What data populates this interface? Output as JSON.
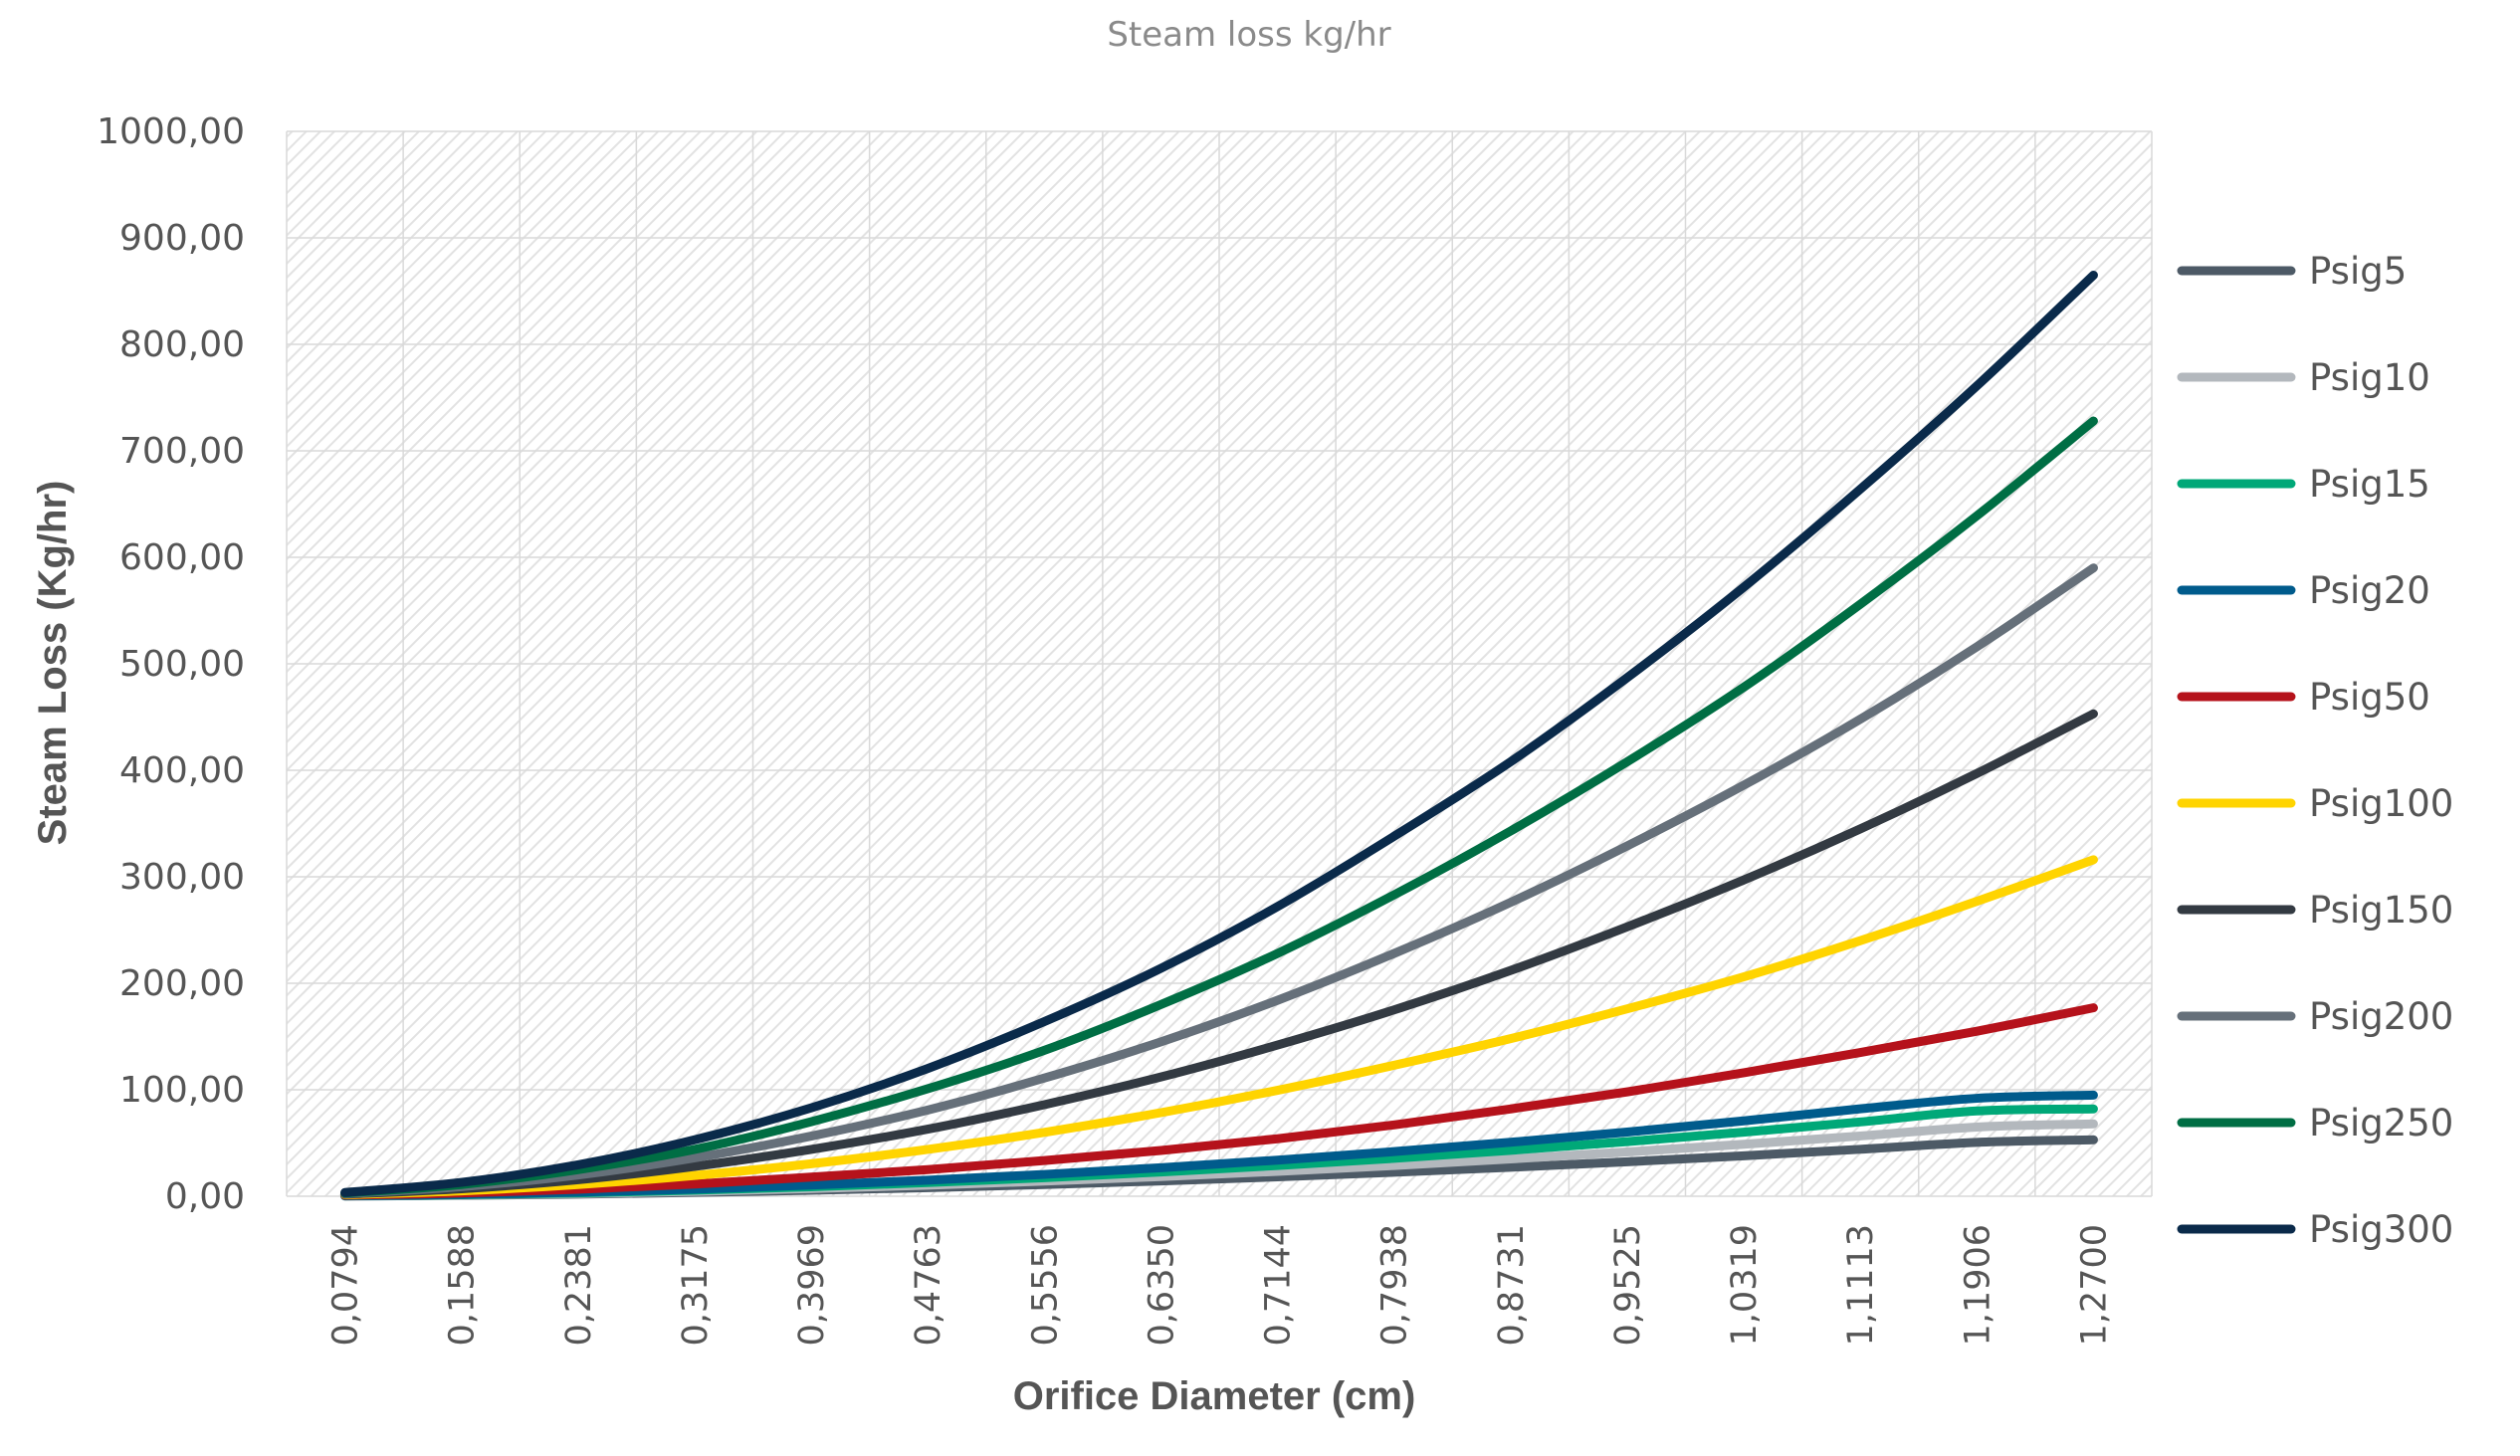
{
  "chart_data": {
    "type": "line",
    "title": "Steam loss kg/hr",
    "xlabel": "Orifice Diameter (cm)",
    "ylabel": "Steam Loss (Kg/hr)",
    "ylim": [
      0,
      1000
    ],
    "yticks": [
      "0,00",
      "100,00",
      "200,00",
      "300,00",
      "400,00",
      "500,00",
      "600,00",
      "700,00",
      "800,00",
      "900,00",
      "1000,00"
    ],
    "categories": [
      "0,0794",
      "0,1588",
      "0,2381",
      "0,3175",
      "0,3969",
      "0,4763",
      "0,5556",
      "0,6350",
      "0,7144",
      "0,7938",
      "0,8731",
      "0,9525",
      "1,0319",
      "1,1113",
      "1,1906",
      "1,2700"
    ],
    "grid": true,
    "legend_position": "right",
    "series": [
      {
        "name": "Psig5",
        "color": "#4d5a66",
        "values": [
          0.2,
          0.9,
          2.0,
          3.6,
          5.6,
          8.1,
          11.0,
          14.4,
          18.2,
          22.5,
          27.2,
          32.4,
          38.0,
          44.1,
          50.6,
          53.0
        ]
      },
      {
        "name": "Psig10",
        "color": "#b3b8bd",
        "values": [
          0.3,
          1.2,
          2.6,
          4.6,
          7.2,
          10.4,
          14.2,
          18.5,
          23.4,
          28.9,
          35.0,
          41.6,
          48.8,
          56.6,
          65.0,
          68.0
        ]
      },
      {
        "name": "Psig15",
        "color": "#00a878",
        "values": [
          0.4,
          1.4,
          3.2,
          5.7,
          8.9,
          12.8,
          17.4,
          22.8,
          28.8,
          35.6,
          43.1,
          51.3,
          60.2,
          69.8,
          80.1,
          82.0
        ]
      },
      {
        "name": "Psig20",
        "color": "#005b8c",
        "values": [
          0.5,
          1.7,
          3.8,
          6.7,
          10.5,
          15.1,
          20.5,
          26.8,
          33.9,
          41.9,
          50.7,
          60.3,
          70.8,
          82.1,
          92.0,
          95.0
        ]
      },
      {
        "name": "Psig50",
        "color": "#b5121b",
        "values": [
          1.0,
          3.0,
          6.5,
          11.5,
          18.0,
          25.0,
          33.5,
          43.0,
          54.0,
          67.0,
          82.0,
          98.0,
          116.0,
          135.0,
          155.0,
          177.0
        ]
      },
      {
        "name": "Psig100",
        "color": "#ffd400",
        "values": [
          1.5,
          5.0,
          11.0,
          19.5,
          30.5,
          44.0,
          60.0,
          78.5,
          99.5,
          123.0,
          148.0,
          176.0,
          206.0,
          240.0,
          277.0,
          316.0
        ]
      },
      {
        "name": "Psig150",
        "color": "#333a42",
        "values": [
          2.0,
          7.0,
          15.5,
          28.0,
          44.0,
          63.0,
          86.0,
          112.0,
          142.0,
          175.0,
          212.0,
          253.0,
          297.0,
          345.0,
          397.0,
          453.0
        ]
      },
      {
        "name": "Psig200",
        "color": "#66707a",
        "values": [
          2.5,
          9.0,
          20.0,
          36.0,
          56.5,
          81.0,
          111.0,
          145.0,
          184.0,
          228.0,
          276.0,
          329.0,
          386.0,
          448.0,
          516.0,
          590.0
        ]
      },
      {
        "name": "Psig250",
        "color": "#006e44",
        "values": [
          3.0,
          11.0,
          25.0,
          44.0,
          70.0,
          101.0,
          137.0,
          180.0,
          228.0,
          283.0,
          343.0,
          408.0,
          478.0,
          556.0,
          639.0,
          728.0
        ]
      },
      {
        "name": "Psig300",
        "color": "#0a2a4a",
        "values": [
          3.5,
          13.0,
          29.5,
          53.0,
          83.0,
          120.0,
          164.0,
          214.0,
          272.0,
          338.0,
          408.0,
          487.0,
          572.0,
          664.0,
          761.0,
          865.0
        ]
      }
    ]
  }
}
